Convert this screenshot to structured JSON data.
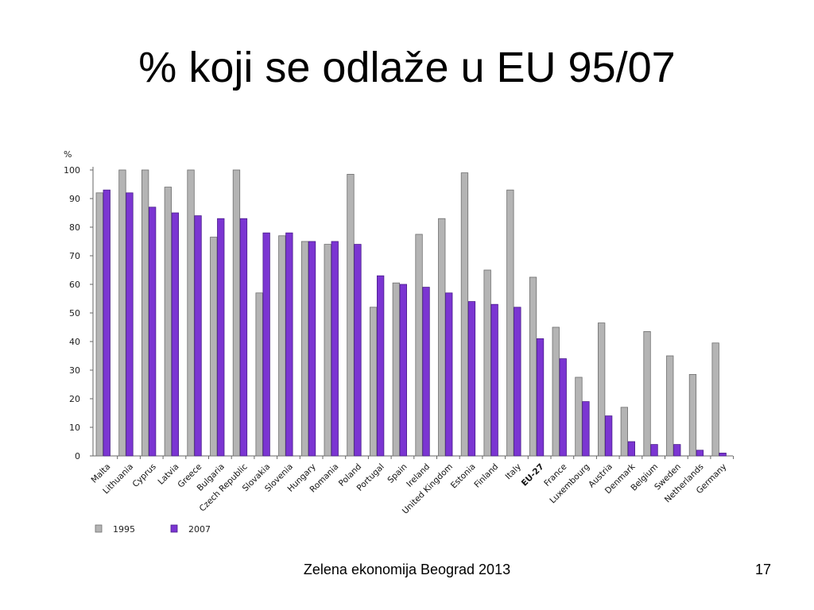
{
  "slide": {
    "title": "% koji se odlaže u EU 95/07",
    "footer": "Zelena ekonomija Beograd 2013",
    "page_number": "17"
  },
  "chart_data": {
    "type": "bar",
    "ylabel": "%",
    "ylim": [
      0,
      100
    ],
    "yticks": [
      0,
      10,
      20,
      30,
      40,
      50,
      60,
      70,
      80,
      90,
      100
    ],
    "grid": false,
    "legend_position": "bottom-left",
    "categories": [
      "Malta",
      "Lithuania",
      "Cyprus",
      "Latvia",
      "Greece",
      "Bulgaria",
      "Czech Republic",
      "Slovakia",
      "Slovenia",
      "Hungary",
      "Romania",
      "Poland",
      "Portugal",
      "Spain",
      "Ireland",
      "United Kingdom",
      "Estonia",
      "Finland",
      "Italy",
      "EU-27",
      "France",
      "Luxembourg",
      "Austria",
      "Denmark",
      "Belgium",
      "Sweden",
      "Netherlands",
      "Germany"
    ],
    "highlight_category": "EU-27",
    "series": [
      {
        "name": "1995",
        "color": "#b4b4b4",
        "values": [
          92,
          100,
          100,
          94,
          100,
          76.5,
          100,
          57,
          77,
          75,
          74,
          98.5,
          52,
          60.5,
          77.5,
          83,
          99,
          65,
          93,
          62.5,
          45,
          27.5,
          46.5,
          17,
          43.5,
          35,
          28.5,
          39.5
        ]
      },
      {
        "name": "2007",
        "color": "#7b35d2",
        "values": [
          93,
          92,
          87,
          85,
          84,
          83,
          83,
          78,
          78,
          75,
          75,
          74,
          63,
          60,
          59,
          57,
          54,
          53,
          52,
          41,
          34,
          19,
          14,
          5,
          4,
          4,
          2,
          1
        ]
      }
    ]
  }
}
